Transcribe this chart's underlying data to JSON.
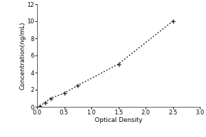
{
  "x_data": [
    0.05,
    0.15,
    0.25,
    0.5,
    0.75,
    1.5,
    2.5
  ],
  "y_data": [
    0.1,
    0.5,
    1.0,
    1.6,
    2.5,
    5.0,
    10.0
  ],
  "xlabel": "Optical Density",
  "ylabel": "Concentration(ng/mL)",
  "xlim": [
    0,
    3
  ],
  "ylim": [
    0,
    12
  ],
  "xticks": [
    0,
    0.5,
    1,
    1.5,
    2,
    2.5,
    3
  ],
  "yticks": [
    0,
    2,
    4,
    6,
    8,
    10,
    12
  ],
  "line_color": "#222222",
  "linestyle": "dotted",
  "linewidth": 1.2,
  "marker_size": 5,
  "background_color": "#ffffff",
  "font_size_labels": 6.5,
  "font_size_ticks": 6,
  "spine_color": "#555555"
}
